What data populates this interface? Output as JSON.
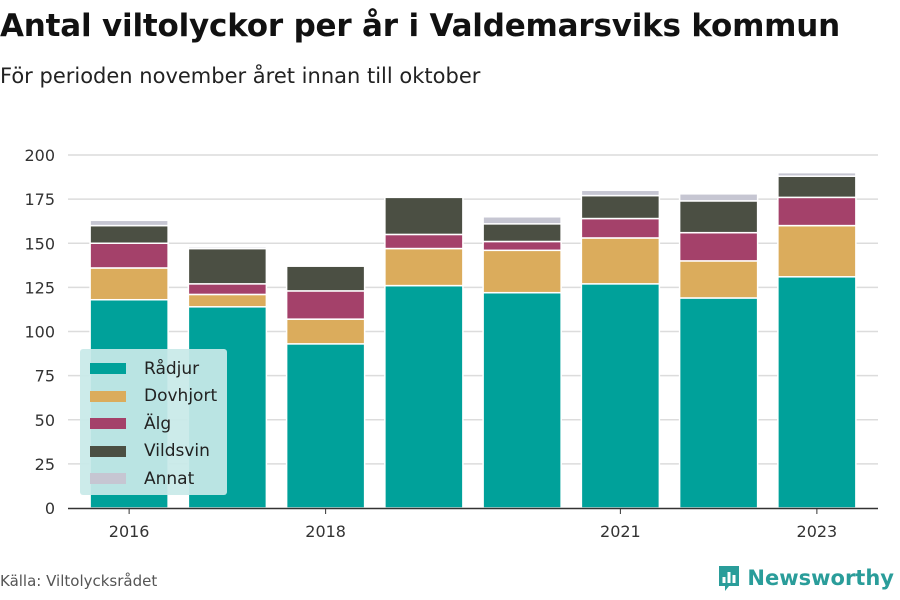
{
  "title": "Antal viltolyckor per år i Valdemarsviks kommun",
  "subtitle": "För perioden november året innan till oktober",
  "source": "Källa: Viltolycksrådet",
  "brand": "Newsworthy",
  "colors": {
    "Rådjur": "#00a19a",
    "Dovhjort": "#dbac5c",
    "Älg": "#a4416a",
    "Vildsvin": "#4b4f43",
    "Annat": "#c6c6d2"
  },
  "chart_data": {
    "type": "bar",
    "stacked": true,
    "categories": [
      "2016",
      "2017",
      "2018",
      "2019",
      "2020",
      "2021",
      "2022",
      "2023"
    ],
    "x_tick_labels": [
      "2016",
      "",
      "2018",
      "",
      "",
      "2021",
      "",
      "2023"
    ],
    "series": [
      {
        "name": "Rådjur",
        "values": [
          118,
          114,
          93,
          126,
          122,
          127,
          119,
          131
        ]
      },
      {
        "name": "Dovhjort",
        "values": [
          18,
          7,
          14,
          21,
          24,
          26,
          21,
          29
        ]
      },
      {
        "name": "Älg",
        "values": [
          14,
          6,
          16,
          8,
          5,
          11,
          16,
          16
        ]
      },
      {
        "name": "Vildsvin",
        "values": [
          10,
          20,
          14,
          21,
          10,
          13,
          18,
          12
        ]
      },
      {
        "name": "Annat",
        "values": [
          3,
          1,
          0,
          0,
          4,
          3,
          4,
          2
        ]
      }
    ],
    "ylim": [
      0,
      200
    ],
    "y_ticks": [
      0,
      25,
      50,
      75,
      100,
      125,
      150,
      175,
      200
    ],
    "grid": true,
    "legend_position": "bottom-left"
  }
}
